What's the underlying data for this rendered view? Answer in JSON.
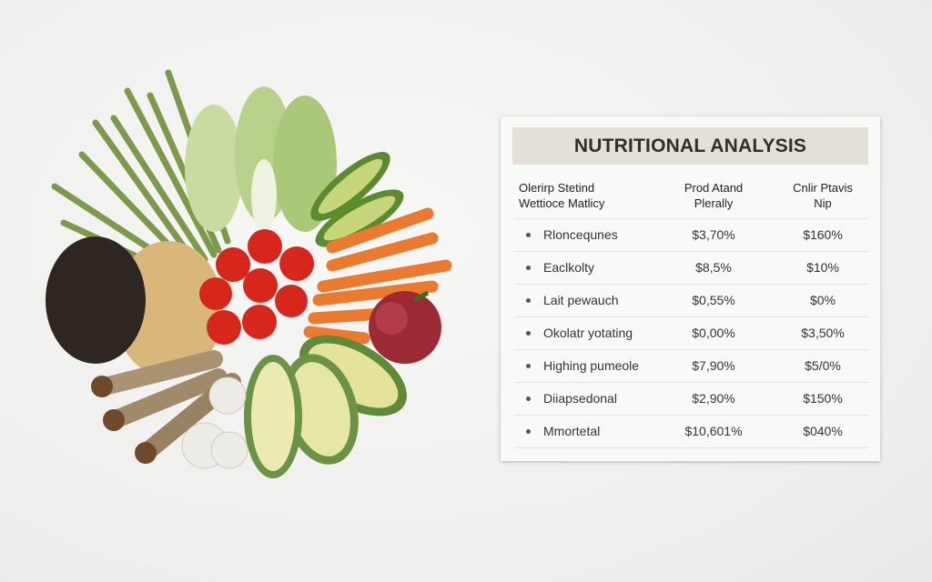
{
  "table": {
    "title": "NUTRITIONAL ANALYSIS",
    "headers": [
      {
        "line1": "Olerirp Stetind",
        "line2": "Wettioce Matlicy"
      },
      {
        "line1": "Prod Atand",
        "line2": "Plerally"
      },
      {
        "line1": "Cnlir Ptavis",
        "line2": "Nip"
      }
    ],
    "rows": [
      {
        "label": "Rloncequnes",
        "v1": "$3,70%",
        "v2": "$160%"
      },
      {
        "label": "Eaclkolty",
        "v1": "$8,5%",
        "v2": "$10%"
      },
      {
        "label": "Lait pewauch",
        "v1": "$0,55%",
        "v2": "$0%"
      },
      {
        "label": "Okolatr yotating",
        "v1": "$0,00%",
        "v2": "$3,50%"
      },
      {
        "label": "Highing pumeole",
        "v1": "$7,90%",
        "v2": "$5/0%"
      },
      {
        "label": "Diiapsedonal",
        "v1": "$2,90%",
        "v2": "$150%"
      },
      {
        "label": "Mmortetal",
        "v1": "$10,601%",
        "v2": "$040%"
      }
    ]
  },
  "colors": {
    "title_bar": "#e4e0d7",
    "background": "#f1f1f0"
  }
}
